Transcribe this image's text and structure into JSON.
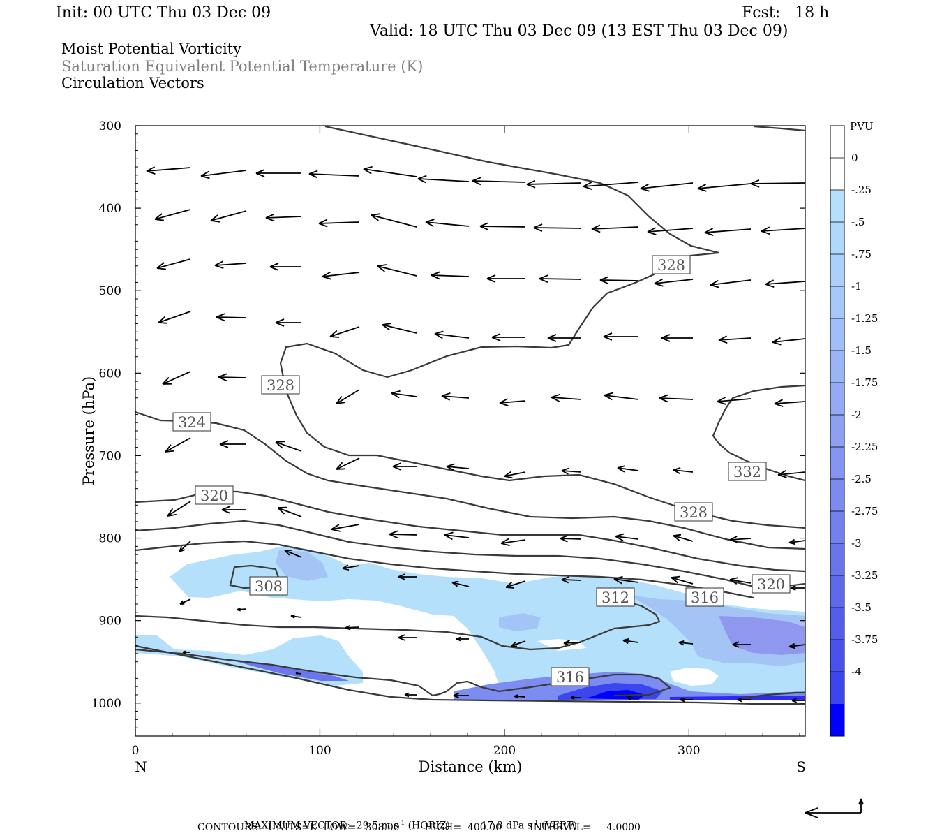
{
  "header": {
    "init": "Init: 00 UTC Thu 03 Dec 09",
    "fcst": "Fcst:   18 h",
    "valid": "Valid: 18 UTC Thu 03 Dec 09 (13 EST Thu 03 Dec 09)"
  },
  "fields": {
    "line1": "Moist Potential Vorticity",
    "line2": "Saturation Equivalent Potential Temperature (K)",
    "line3": "Circulation Vectors"
  },
  "footer": {
    "max_vector_label": "MAXIMUM VECTOR:",
    "horiz": "29.5 m s",
    "horiz_exp": "-1",
    "horiz_unit": " (HORIZ)",
    "vert": "17.8 dPa s",
    "vert_exp": "-1",
    "vert_unit": " (VERT)",
    "contours": "CONTOURS:  UNITS=K  LOW=   308.00        HIGH=  400.00         INTERVAL=     4.0000"
  },
  "colors": {
    "contour": "#3a3a3a",
    "shade_light": "#b5e0fb",
    "shade_mid": "#9fb3f2",
    "shade_dark": "#3c3cf0",
    "shade_max": "#0000ff"
  },
  "chart_data": {
    "type": "cross-section",
    "xlabel": "Distance (km)",
    "ylabel": "Pressure (hPa)",
    "xlim": [
      0,
      363
    ],
    "ylim": [
      1040,
      300
    ],
    "x_ticks": [
      0,
      100,
      200,
      300
    ],
    "y_ticks": [
      300,
      400,
      500,
      600,
      700,
      800,
      900,
      1000
    ],
    "x_end_labels": [
      "N",
      "S"
    ],
    "colorbar": {
      "unit": "PVU",
      "levels": [
        "0",
        "-.25",
        "-.5",
        "-.75",
        "-1",
        "-1.25",
        "-1.5",
        "-1.75",
        "-2",
        "-2.25",
        "-2.5",
        "-2.75",
        "-3",
        "-3.25",
        "-3.5",
        "-3.75",
        "-4"
      ],
      "colors": [
        "#ffffff",
        "#ffffff",
        "#b5e0fb",
        "#b0d8fb",
        "#abd0fb",
        "#a6c8f9",
        "#a0bef7",
        "#9ab4f5",
        "#94aaf4",
        "#8da0f2",
        "#8595f0",
        "#7d8aee",
        "#7480ec",
        "#6a75ea",
        "#5f6aea",
        "#545eea",
        "#4852eb",
        "#3c46ec",
        "#0000ff"
      ]
    },
    "contours_K": [
      {
        "value": 308,
        "label_at": [
          72,
          857
        ]
      },
      {
        "value": 312,
        "label_at": [
          260,
          883
        ]
      },
      {
        "value": 316,
        "label_at": [
          310,
          884
        ]
      },
      {
        "value": 316,
        "label_at": [
          236,
          1002
        ]
      },
      {
        "value": 320,
        "label_at": [
          42,
          755
        ]
      },
      {
        "value": 320,
        "label_at": [
          344,
          864
        ]
      },
      {
        "value": 324,
        "label_at": [
          30,
          652
        ]
      },
      {
        "value": 328,
        "label_at": [
          78,
          606
        ]
      },
      {
        "value": 328,
        "label_at": [
          291,
          478
        ]
      },
      {
        "value": 328,
        "label_at": [
          302,
          771
        ]
      },
      {
        "value": 332,
        "label_at": [
          332,
          720
        ]
      }
    ]
  }
}
